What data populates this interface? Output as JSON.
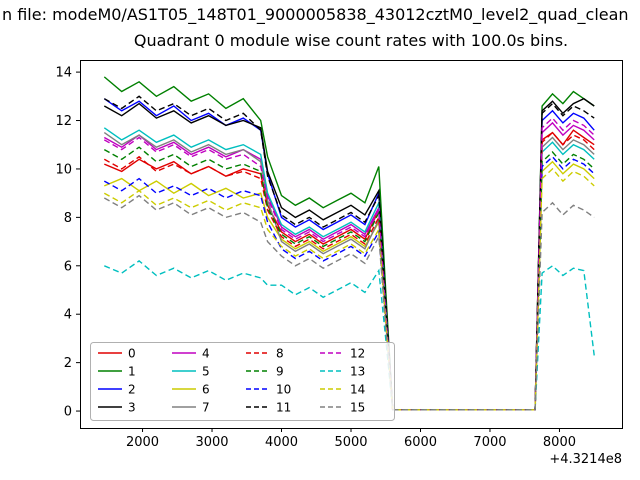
{
  "figure": {
    "suptitle": "n file: modeM0/AS1T05_148T01_9000005838_43012cztM0_level2_quad_clean",
    "title": "Quadrant 0 module wise count rates with 100.0s bins.",
    "background": "#ffffff"
  },
  "chart_data": {
    "type": "line",
    "title": "Quadrant 0 module wise count rates with 100.0s bins.",
    "xlabel": "",
    "ylabel": "",
    "x_offset_label": "+4.3214e8",
    "xlim": [
      1100,
      8900
    ],
    "ylim": [
      -0.7,
      14.5
    ],
    "x_ticks": [
      2000,
      3000,
      4000,
      5000,
      6000,
      7000,
      8000
    ],
    "y_ticks": [
      0,
      2,
      4,
      6,
      8,
      10,
      12,
      14
    ],
    "grid": false,
    "legend_position": "lower left",
    "legend_columns": 4,
    "x": [
      1450,
      1700,
      1950,
      2200,
      2450,
      2700,
      2950,
      3200,
      3450,
      3700,
      3800,
      4000,
      4200,
      4400,
      4600,
      4800,
      5000,
      5200,
      5400,
      5500,
      5600,
      6000,
      6500,
      7000,
      7500,
      7650,
      7750,
      7900,
      8050,
      8200,
      8350,
      8500
    ],
    "series": [
      {
        "name": "0",
        "color": "#e00000",
        "dash": "solid",
        "values": [
          10.2,
          9.9,
          10.4,
          10.0,
          10.3,
          9.8,
          10.1,
          9.7,
          10.0,
          9.8,
          8.5,
          7.4,
          7.0,
          7.3,
          6.9,
          7.2,
          7.5,
          7.1,
          8.3,
          4.0,
          0.05,
          0.05,
          0.05,
          0.05,
          0.05,
          0.05,
          11.2,
          11.5,
          11.0,
          11.6,
          11.3,
          11.0
        ]
      },
      {
        "name": "1",
        "color": "#008000",
        "dash": "solid",
        "values": [
          13.8,
          13.2,
          13.6,
          13.0,
          13.4,
          12.8,
          13.1,
          12.5,
          12.9,
          12.0,
          10.5,
          8.9,
          8.5,
          8.8,
          8.4,
          8.7,
          9.0,
          8.6,
          10.1,
          5.0,
          0.05,
          0.05,
          0.05,
          0.05,
          0.05,
          0.05,
          12.6,
          13.1,
          12.7,
          13.2,
          12.9,
          12.6
        ]
      },
      {
        "name": "2",
        "color": "#0000ff",
        "dash": "solid",
        "values": [
          12.9,
          12.4,
          12.8,
          12.2,
          12.6,
          12.0,
          12.3,
          11.8,
          12.1,
          11.6,
          9.8,
          8.0,
          7.6,
          7.9,
          7.5,
          7.8,
          8.1,
          7.7,
          9.0,
          4.5,
          0.05,
          0.05,
          0.05,
          0.05,
          0.05,
          0.05,
          12.0,
          12.4,
          11.9,
          12.3,
          12.1,
          11.6
        ]
      },
      {
        "name": "3",
        "color": "#000000",
        "dash": "solid",
        "values": [
          12.6,
          12.2,
          12.7,
          12.1,
          12.4,
          11.9,
          12.2,
          11.8,
          12.0,
          11.7,
          9.9,
          8.4,
          8.0,
          8.3,
          7.9,
          8.2,
          8.5,
          8.1,
          9.1,
          4.6,
          0.05,
          0.05,
          0.05,
          0.05,
          0.05,
          0.05,
          12.4,
          12.8,
          12.3,
          12.7,
          12.9,
          12.6
        ]
      },
      {
        "name": "4",
        "color": "#c000c0",
        "dash": "solid",
        "values": [
          11.3,
          10.9,
          11.4,
          10.8,
          11.1,
          10.6,
          10.9,
          10.5,
          10.8,
          10.4,
          8.9,
          7.6,
          7.2,
          7.5,
          7.1,
          7.4,
          7.7,
          7.3,
          8.4,
          4.2,
          0.05,
          0.05,
          0.05,
          0.05,
          0.05,
          0.05,
          11.5,
          11.9,
          11.4,
          11.8,
          11.6,
          11.2
        ]
      },
      {
        "name": "5",
        "color": "#00bfbf",
        "dash": "solid",
        "values": [
          11.7,
          11.2,
          11.6,
          11.1,
          11.4,
          10.9,
          11.2,
          10.8,
          11.0,
          10.6,
          9.0,
          7.7,
          7.3,
          7.6,
          7.2,
          7.5,
          7.8,
          7.4,
          8.6,
          4.3,
          0.05,
          0.05,
          0.05,
          0.05,
          0.05,
          0.05,
          10.7,
          11.1,
          10.6,
          11.0,
          10.8,
          10.4
        ]
      },
      {
        "name": "6",
        "color": "#cccc00",
        "dash": "solid",
        "values": [
          9.3,
          9.6,
          9.1,
          9.5,
          9.0,
          9.4,
          8.9,
          9.2,
          8.8,
          9.0,
          8.0,
          7.1,
          6.7,
          7.0,
          6.6,
          6.9,
          7.2,
          6.8,
          7.8,
          3.9,
          0.05,
          0.05,
          0.05,
          0.05,
          0.05,
          0.05,
          9.9,
          10.3,
          9.8,
          10.2,
          10.0,
          9.6
        ]
      },
      {
        "name": "7",
        "color": "#808080",
        "dash": "solid",
        "values": [
          11.5,
          11.0,
          11.4,
          10.9,
          11.2,
          10.7,
          11.0,
          10.6,
          10.8,
          10.3,
          8.7,
          7.0,
          6.6,
          6.9,
          6.5,
          6.8,
          7.1,
          6.7,
          7.9,
          4.0,
          0.05,
          0.05,
          0.05,
          0.05,
          0.05,
          0.05,
          10.9,
          11.3,
          10.8,
          11.2,
          11.0,
          10.6
        ]
      },
      {
        "name": "8",
        "color": "#e00000",
        "dash": "dashed",
        "values": [
          10.4,
          10.0,
          10.5,
          9.9,
          10.2,
          9.8,
          10.1,
          9.7,
          9.9,
          9.6,
          8.3,
          7.2,
          6.8,
          7.1,
          6.7,
          7.0,
          7.3,
          6.9,
          8.0,
          3.9,
          0.05,
          0.05,
          0.05,
          0.05,
          0.05,
          0.05,
          11.1,
          11.5,
          11.0,
          11.4,
          11.2,
          10.8
        ]
      },
      {
        "name": "9",
        "color": "#008000",
        "dash": "dashed",
        "values": [
          10.8,
          10.4,
          10.9,
          10.3,
          10.6,
          10.1,
          10.4,
          10.0,
          10.2,
          9.9,
          8.4,
          7.3,
          6.9,
          7.2,
          6.8,
          7.1,
          7.4,
          7.0,
          8.2,
          4.0,
          0.05,
          0.05,
          0.05,
          0.05,
          0.05,
          0.05,
          10.3,
          10.7,
          10.2,
          10.6,
          10.4,
          10.0
        ]
      },
      {
        "name": "10",
        "color": "#0000ff",
        "dash": "dashed",
        "values": [
          9.5,
          9.1,
          9.6,
          9.0,
          9.3,
          8.9,
          9.2,
          8.8,
          9.1,
          8.9,
          7.8,
          6.7,
          6.3,
          6.6,
          6.2,
          6.5,
          6.8,
          6.4,
          7.4,
          3.6,
          0.05,
          0.05,
          0.05,
          0.05,
          0.05,
          0.05,
          10.1,
          10.5,
          10.0,
          10.4,
          10.2,
          9.8
        ]
      },
      {
        "name": "11",
        "color": "#000000",
        "dash": "dashed",
        "values": [
          12.9,
          12.5,
          13.0,
          12.4,
          12.7,
          12.2,
          12.5,
          12.0,
          12.3,
          11.6,
          9.7,
          8.1,
          7.7,
          8.0,
          7.6,
          7.9,
          8.2,
          7.8,
          8.9,
          4.4,
          0.05,
          0.05,
          0.05,
          0.05,
          0.05,
          0.05,
          12.3,
          12.7,
          12.2,
          12.6,
          12.4,
          12.1
        ]
      },
      {
        "name": "12",
        "color": "#c000c0",
        "dash": "dashed",
        "values": [
          11.2,
          10.8,
          11.3,
          10.7,
          11.0,
          10.5,
          10.8,
          10.4,
          10.6,
          10.1,
          8.8,
          7.5,
          7.1,
          7.4,
          7.0,
          7.3,
          7.6,
          7.2,
          8.3,
          4.1,
          0.05,
          0.05,
          0.05,
          0.05,
          0.05,
          0.05,
          11.7,
          12.1,
          11.6,
          12.0,
          11.8,
          11.4
        ]
      },
      {
        "name": "13",
        "color": "#00bfbf",
        "dash": "dashed",
        "values": [
          6.0,
          5.7,
          6.2,
          5.6,
          5.9,
          5.5,
          5.8,
          5.4,
          5.7,
          5.5,
          5.2,
          5.2,
          4.8,
          5.1,
          4.7,
          5.0,
          5.3,
          4.9,
          5.8,
          3.0,
          0.05,
          0.05,
          0.05,
          0.05,
          0.05,
          0.05,
          5.7,
          6.0,
          5.6,
          5.9,
          5.8,
          2.3
        ]
      },
      {
        "name": "14",
        "color": "#cccc00",
        "dash": "dashed",
        "values": [
          9.0,
          8.6,
          9.1,
          8.5,
          8.8,
          8.4,
          8.7,
          8.3,
          8.6,
          8.4,
          7.5,
          6.8,
          6.4,
          6.7,
          6.3,
          6.6,
          6.9,
          6.5,
          7.5,
          3.7,
          0.05,
          0.05,
          0.05,
          0.05,
          0.05,
          0.05,
          9.6,
          10.0,
          9.5,
          9.9,
          9.7,
          9.3
        ]
      },
      {
        "name": "15",
        "color": "#808080",
        "dash": "dashed",
        "values": [
          8.8,
          8.4,
          8.9,
          8.3,
          8.6,
          8.1,
          8.4,
          8.0,
          8.2,
          7.8,
          7.0,
          6.4,
          6.0,
          6.3,
          5.9,
          6.2,
          6.5,
          6.1,
          7.2,
          3.5,
          0.05,
          0.05,
          0.05,
          0.05,
          0.05,
          0.05,
          8.2,
          8.6,
          8.1,
          8.5,
          8.3,
          8.0
        ]
      }
    ]
  }
}
